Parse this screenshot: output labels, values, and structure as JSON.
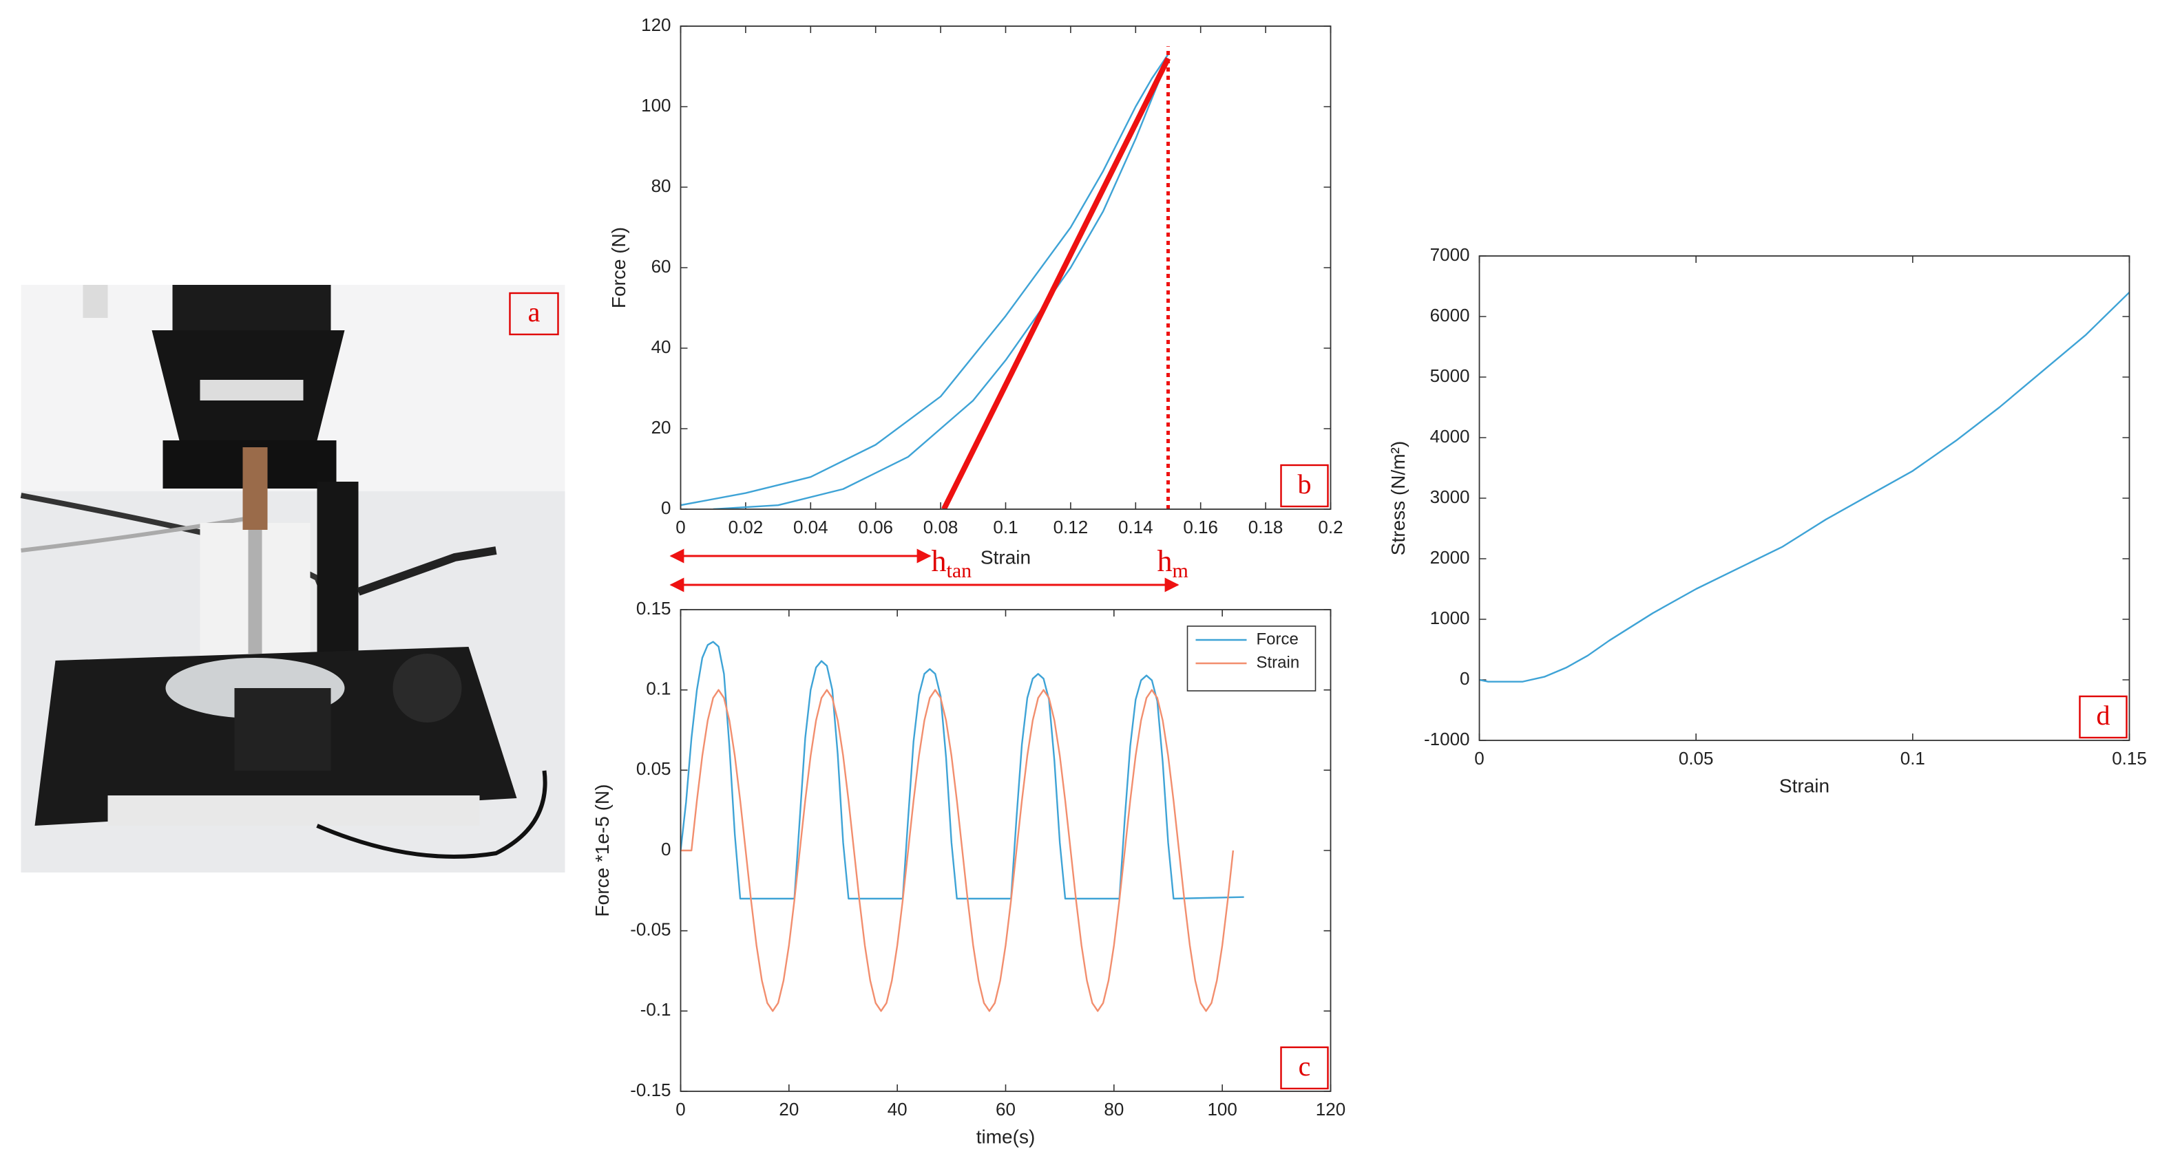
{
  "photo": {
    "label": "a"
  },
  "chart_data": [
    {
      "type": "line",
      "panel_label": "b",
      "xlabel": "Strain",
      "ylabel": "Force (N)",
      "xlim": [
        0,
        0.2
      ],
      "xticks": [
        0,
        0.02,
        0.04,
        0.06,
        0.08,
        0.1,
        0.12,
        0.14,
        0.16,
        0.18,
        0.2
      ],
      "ylim": [
        0,
        120
      ],
      "yticks": [
        0,
        20,
        40,
        60,
        80,
        100,
        120
      ],
      "series": [
        {
          "color": "#3ea3d6",
          "x": [
            0,
            0.02,
            0.04,
            0.06,
            0.08,
            0.1,
            0.12,
            0.13,
            0.14,
            0.145,
            0.15
          ],
          "values": [
            1,
            4,
            8,
            16,
            28,
            48,
            70,
            84,
            100,
            107,
            113
          ]
        },
        {
          "color": "#3ea3d6",
          "x": [
            0.01,
            0.03,
            0.05,
            0.07,
            0.09,
            0.1,
            0.12,
            0.13,
            0.14,
            0.15
          ],
          "values": [
            0,
            1,
            5,
            13,
            27,
            37,
            60,
            74,
            92,
            112
          ]
        },
        {
          "color": "#ee1111",
          "width": 4,
          "x": [
            0.081,
            0.15
          ],
          "values": [
            0,
            112
          ]
        },
        {
          "color": "#ee1111",
          "width": 2.5,
          "dash": true,
          "x": [
            0.15,
            0.15
          ],
          "values": [
            0,
            115
          ]
        }
      ],
      "annotations": [
        {
          "text": "h",
          "subscript": "tan"
        },
        {
          "text": "h",
          "subscript": "m"
        }
      ]
    },
    {
      "type": "line",
      "panel_label": "c",
      "xlabel": "time(s)",
      "ylabel": "Force *1e-5 (N)",
      "xlim": [
        0,
        120
      ],
      "xticks": [
        0,
        20,
        40,
        60,
        80,
        100,
        120
      ],
      "ylim": [
        -0.15,
        0.15
      ],
      "yticks": [
        -0.15,
        -0.1,
        -0.05,
        0,
        0.05,
        0.1,
        0.15
      ],
      "legend": "upper right",
      "series": [
        {
          "name": "Force",
          "color": "#3ea3d6",
          "x": [
            0,
            1,
            2,
            3,
            4,
            5,
            6,
            7,
            8,
            9,
            10,
            11,
            21,
            22,
            23,
            24,
            25,
            26,
            27,
            28,
            29,
            30,
            31,
            41,
            42,
            43,
            44,
            45,
            46,
            47,
            48,
            49,
            50,
            51,
            61,
            62,
            63,
            64,
            65,
            66,
            67,
            68,
            69,
            70,
            71,
            81,
            82,
            83,
            84,
            85,
            86,
            87,
            88,
            89,
            90,
            91,
            104
          ],
          "values": [
            0,
            0.03,
            0.07,
            0.1,
            0.12,
            0.128,
            0.13,
            0.127,
            0.11,
            0.065,
            0.01,
            -0.03,
            -0.03,
            0.02,
            0.07,
            0.1,
            0.114,
            0.118,
            0.115,
            0.1,
            0.06,
            0.005,
            -0.03,
            -0.03,
            0.02,
            0.068,
            0.097,
            0.11,
            0.113,
            0.11,
            0.096,
            0.058,
            0.005,
            -0.03,
            -0.03,
            0.02,
            0.066,
            0.095,
            0.107,
            0.11,
            0.107,
            0.094,
            0.056,
            0.005,
            -0.03,
            -0.03,
            0.02,
            0.065,
            0.094,
            0.106,
            0.109,
            0.106,
            0.093,
            0.055,
            0.005,
            -0.03,
            -0.029
          ]
        },
        {
          "name": "Strain",
          "color": "#f28e6e",
          "x": [
            0,
            2,
            3,
            4,
            5,
            6,
            7,
            8,
            9,
            10,
            11,
            12,
            13,
            14,
            15,
            16,
            17,
            18,
            19,
            20,
            21,
            22,
            23,
            24,
            25,
            26,
            27,
            28,
            29,
            30,
            31,
            32,
            33,
            34,
            35,
            36,
            37,
            38,
            39,
            40,
            41,
            42,
            43,
            44,
            45,
            46,
            47,
            48,
            49,
            50,
            51,
            52,
            53,
            54,
            55,
            56,
            57,
            58,
            59,
            60,
            61,
            62,
            63,
            64,
            65,
            66,
            67,
            68,
            69,
            70,
            71,
            72,
            73,
            74,
            75,
            76,
            77,
            78,
            79,
            80,
            81,
            82,
            83,
            84,
            85,
            86,
            87,
            88,
            89,
            90,
            91,
            92,
            93,
            94,
            95,
            96,
            97,
            98,
            99,
            100,
            101,
            102
          ],
          "values": [
            0,
            0,
            0.031,
            0.059,
            0.081,
            0.095,
            0.1,
            0.095,
            0.081,
            0.059,
            0.031,
            0,
            -0.031,
            -0.059,
            -0.081,
            -0.095,
            -0.1,
            -0.095,
            -0.081,
            -0.059,
            -0.031,
            0,
            0.031,
            0.059,
            0.081,
            0.095,
            0.1,
            0.095,
            0.081,
            0.059,
            0.031,
            0,
            -0.031,
            -0.059,
            -0.081,
            -0.095,
            -0.1,
            -0.095,
            -0.081,
            -0.059,
            -0.031,
            0,
            0.031,
            0.059,
            0.081,
            0.095,
            0.1,
            0.095,
            0.081,
            0.059,
            0.031,
            0,
            -0.031,
            -0.059,
            -0.081,
            -0.095,
            -0.1,
            -0.095,
            -0.081,
            -0.059,
            -0.031,
            0,
            0.031,
            0.059,
            0.081,
            0.095,
            0.1,
            0.095,
            0.081,
            0.059,
            0.031,
            0,
            -0.031,
            -0.059,
            -0.081,
            -0.095,
            -0.1,
            -0.095,
            -0.081,
            -0.059,
            -0.031,
            0,
            0.031,
            0.059,
            0.081,
            0.095,
            0.1,
            0.095,
            0.081,
            0.059,
            0.031,
            0,
            -0.031,
            -0.059,
            -0.081,
            -0.095,
            -0.1,
            -0.095,
            -0.081,
            -0.059,
            -0.031,
            0
          ]
        }
      ]
    },
    {
      "type": "line",
      "panel_label": "d",
      "xlabel": "Strain",
      "ylabel": "Stress (N/m²)",
      "xlim": [
        0,
        0.15
      ],
      "xticks": [
        0,
        0.05,
        0.1,
        0.15
      ],
      "ylim": [
        -1000,
        7000
      ],
      "yticks": [
        -1000,
        0,
        1000,
        2000,
        3000,
        4000,
        5000,
        6000,
        7000
      ],
      "series": [
        {
          "color": "#3ea3d6",
          "x": [
            0,
            0.002,
            0.01,
            0.015,
            0.02,
            0.025,
            0.03,
            0.04,
            0.05,
            0.06,
            0.07,
            0.08,
            0.09,
            0.1,
            0.11,
            0.12,
            0.13,
            0.14,
            0.15
          ],
          "values": [
            0,
            -30,
            -30,
            50,
            200,
            400,
            650,
            1100,
            1500,
            1850,
            2200,
            2650,
            3050,
            3450,
            3950,
            4500,
            5100,
            5700,
            6400
          ]
        }
      ]
    }
  ]
}
